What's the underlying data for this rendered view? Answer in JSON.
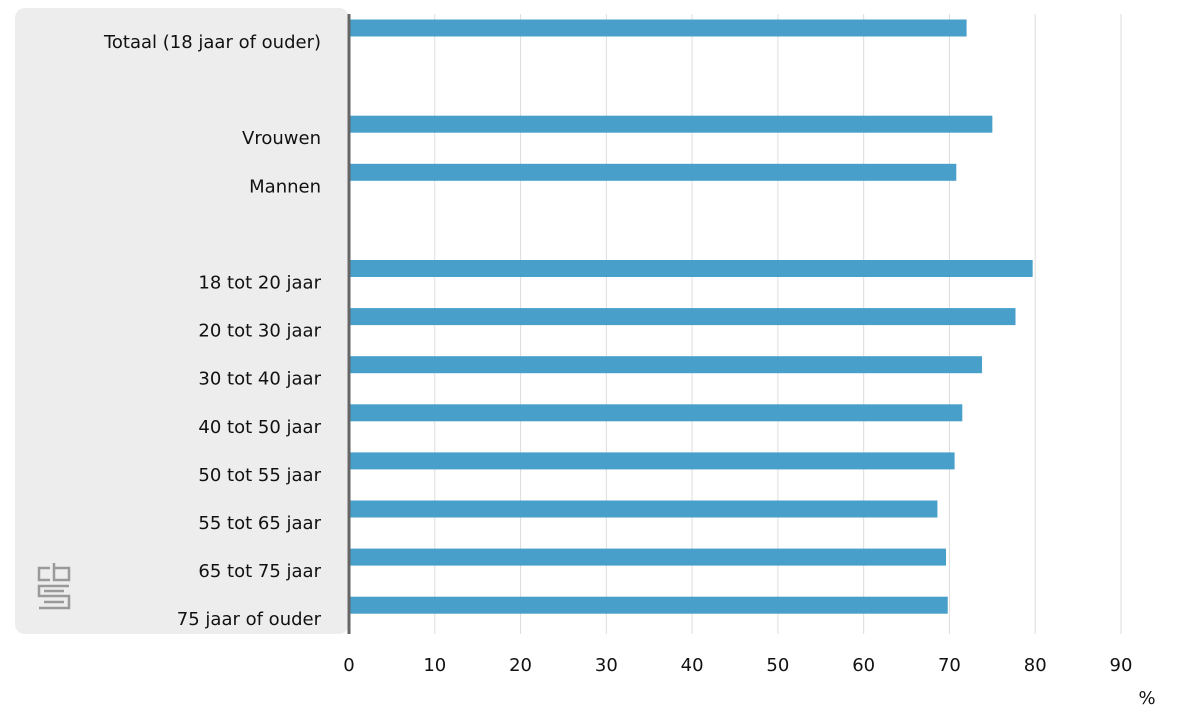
{
  "chart_data": {
    "type": "bar",
    "orientation": "horizontal",
    "categories": [
      "Totaal (18 jaar of ouder)",
      "",
      "Vrouwen",
      "Mannen",
      "",
      "18 tot 20 jaar",
      "20 tot 30 jaar",
      "30 tot 40 jaar",
      "40 tot 50 jaar",
      "50 tot 55 jaar",
      "55 tot 65 jaar",
      "65 tot 75 jaar",
      "75 jaar of ouder"
    ],
    "values": [
      72,
      null,
      75,
      70.8,
      null,
      79.7,
      77.7,
      73.8,
      71.5,
      70.6,
      68.6,
      69.6,
      69.8
    ],
    "xlim": [
      0,
      90
    ],
    "xticks": [
      0,
      10,
      20,
      30,
      40,
      50,
      60,
      70,
      80,
      90
    ],
    "unit": "%",
    "grid": true,
    "colors": {
      "bar": "#479fca",
      "label_panel": "#ededed",
      "grid": "#dcdcdc",
      "axis": "#666666",
      "text": "#111111",
      "logo": "#9a9a9a"
    },
    "logo": "cbs"
  }
}
